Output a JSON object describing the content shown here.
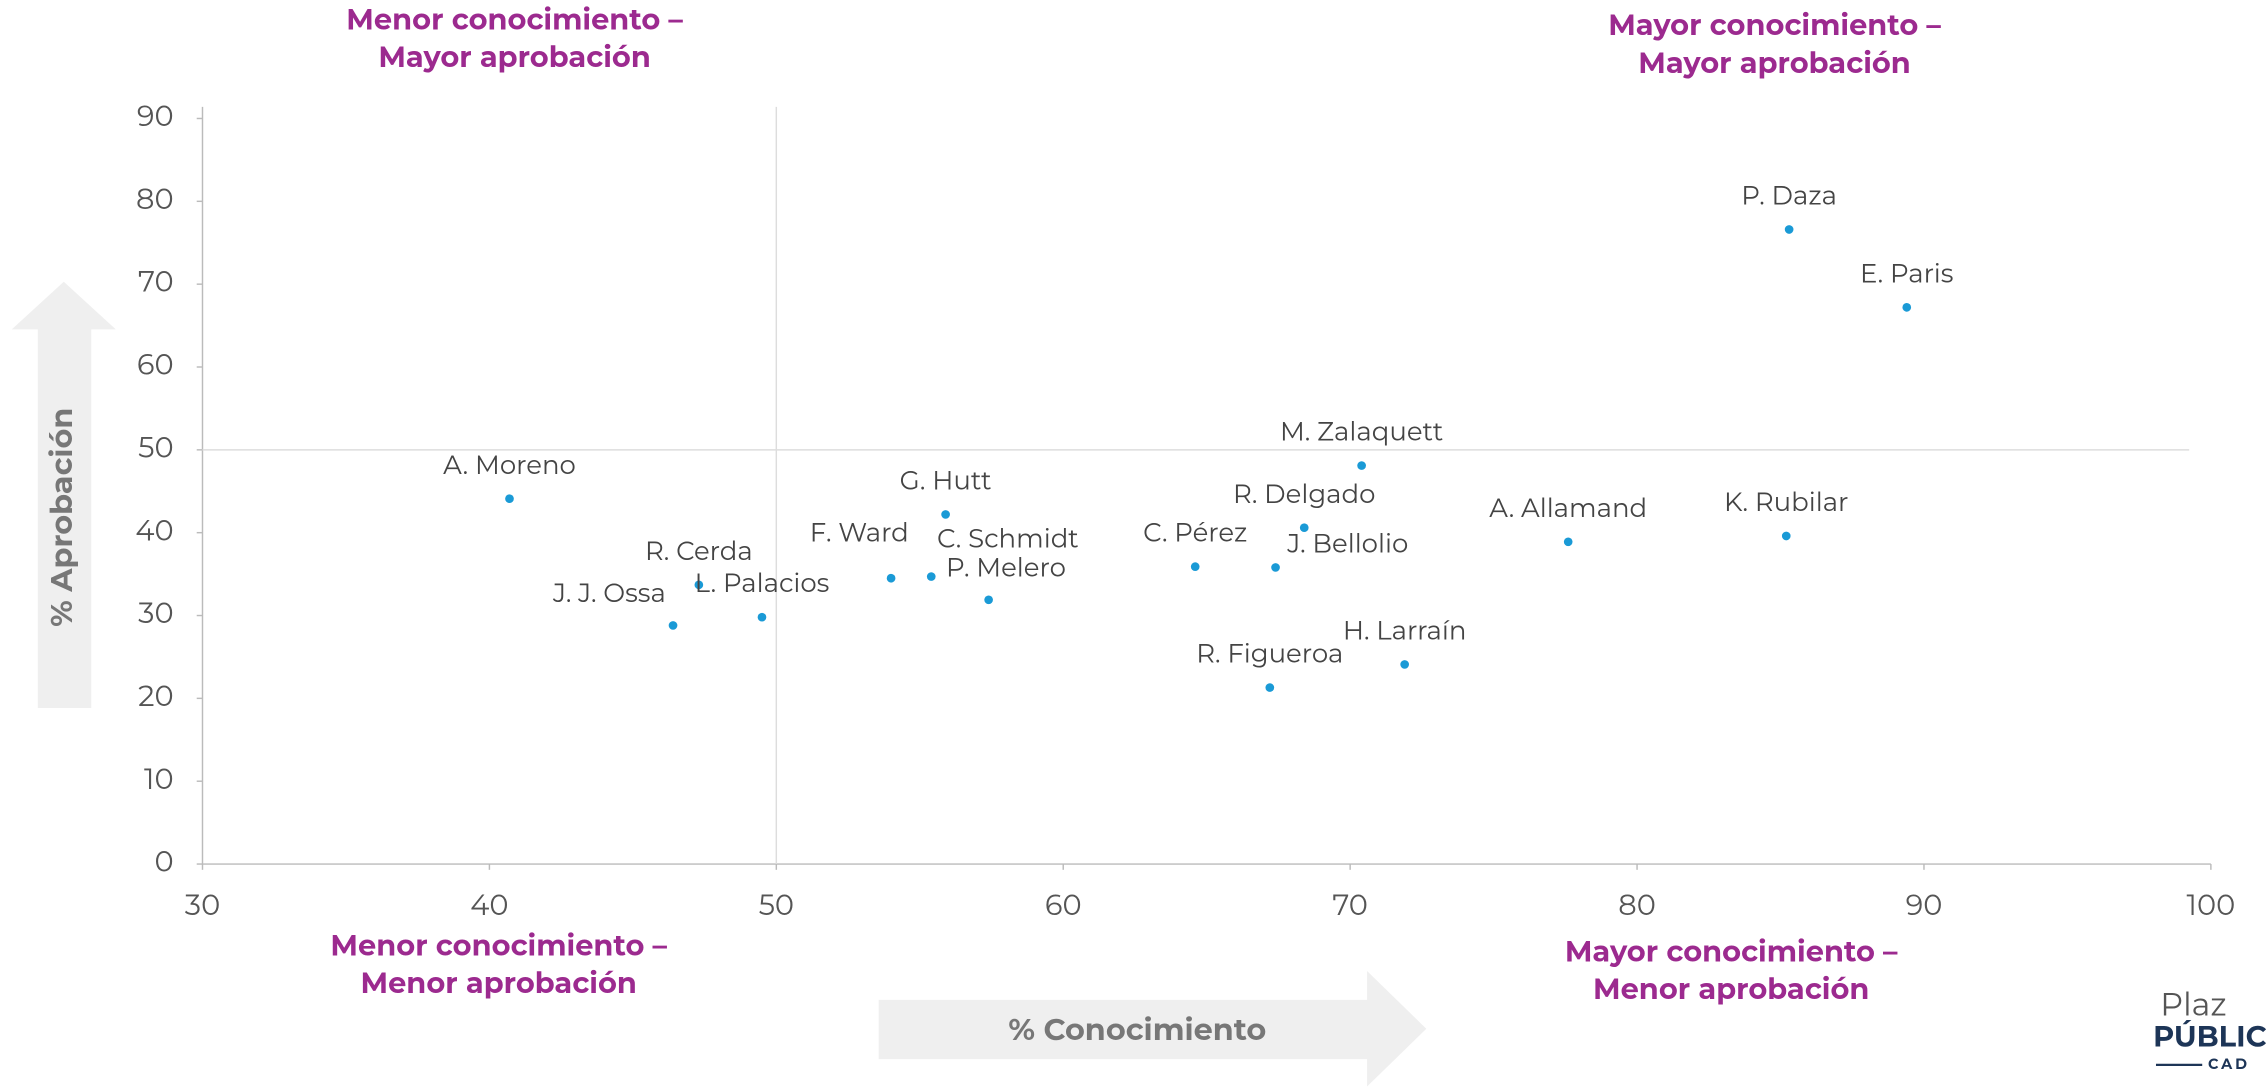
{
  "chart_data": {
    "type": "scatter",
    "xlabel": "% Conocimiento",
    "ylabel": "% Aprobación",
    "quadrants": {
      "top_left": [
        "Menor conocimiento –",
        "Mayor aprobación"
      ],
      "top_right": [
        "Mayor conocimiento –",
        "Mayor aprobación"
      ],
      "bottom_left": [
        "Menor conocimiento –",
        "Menor aprobación"
      ],
      "bottom_right": [
        "Mayor conocimiento –",
        "Menor aprobación"
      ]
    },
    "labels": [
      "P. Daza",
      "E. Paris",
      "M. Zalaquett",
      "A. Moreno",
      "G. Hutt",
      "R. Delgado",
      "A. Allamand",
      "K. Rubilar",
      "C. Pérez",
      "J. Bellolio",
      "F. Ward",
      "C. Schmidt",
      "R. Cerda",
      "P. Melero",
      "L. Palacios",
      "J. J. Ossa",
      "H. Larraín",
      "R. Figueroa"
    ],
    "x": [
      85.3,
      89.4,
      70.4,
      40.7,
      55.9,
      68.4,
      77.6,
      85.2,
      64.6,
      67.4,
      54.0,
      55.4,
      47.3,
      57.4,
      49.5,
      46.4,
      71.9,
      67.2
    ],
    "values": [
      76.6,
      67.2,
      48.1,
      44.1,
      42.2,
      40.6,
      38.9,
      39.6,
      35.9,
      35.8,
      34.5,
      34.7,
      33.7,
      31.9,
      29.8,
      28.8,
      24.1,
      21.3
    ],
    "color": "#1a9ad6",
    "xlim": [
      30,
      100
    ],
    "xticks": [
      30,
      40,
      50,
      60,
      70,
      80,
      90,
      100
    ],
    "ylim": [
      0,
      90
    ],
    "yticks": [
      0,
      10,
      20,
      30,
      40,
      50,
      60,
      70,
      80,
      90
    ],
    "reference_lines": {
      "x": 50,
      "y": 50
    },
    "logo": [
      "Plaz",
      "PÚBLIC",
      "CAD"
    ]
  }
}
